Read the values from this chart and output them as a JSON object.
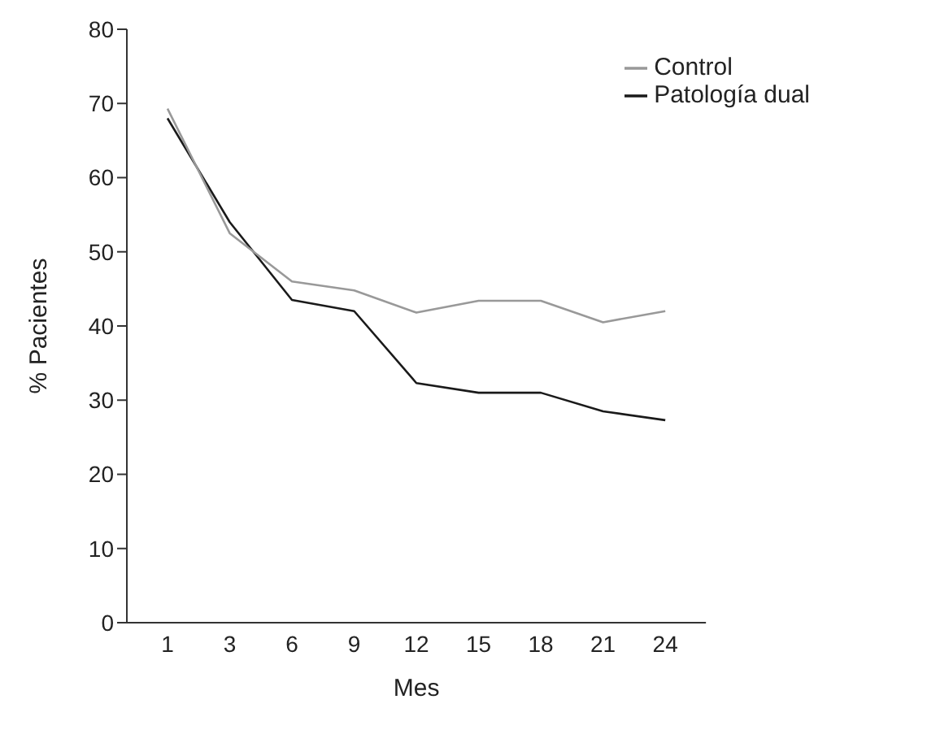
{
  "chart_data": {
    "type": "line",
    "xlabel": "Mes",
    "ylabel": "% Pacientes",
    "categories": [
      "1",
      "3",
      "6",
      "9",
      "12",
      "15",
      "18",
      "21",
      "24"
    ],
    "series": [
      {
        "name": "Patología dual",
        "color": "#1a1a1a",
        "values": [
          68,
          54,
          43.5,
          42,
          32.3,
          31,
          31,
          28.5,
          27.3
        ]
      },
      {
        "name": "Control",
        "color": "#999999",
        "values": [
          69.3,
          52.5,
          46,
          44.8,
          41.8,
          43.4,
          43.4,
          40.5,
          42
        ]
      }
    ],
    "ylim": [
      0,
      80
    ],
    "yticks": [
      0,
      10,
      20,
      30,
      40,
      50,
      60,
      70,
      80
    ],
    "grid": false,
    "legend": "top right",
    "marker": "none",
    "line_style": "solid"
  }
}
